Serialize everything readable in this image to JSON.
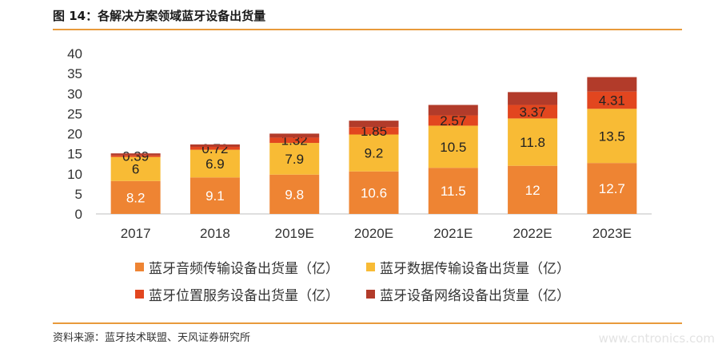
{
  "figure": {
    "title": "图 14：各解决方案领域蓝牙设备出货量",
    "source": "资料来源：蓝牙技术联盟、天风证券研究所",
    "watermark": "www.cntronics.com"
  },
  "chart_data": {
    "type": "bar",
    "stacked": true,
    "categories": [
      "2017",
      "2018",
      "2019E",
      "2020E",
      "2021E",
      "2022E",
      "2023E"
    ],
    "ylim": [
      0,
      40
    ],
    "yticks": [
      0,
      5,
      10,
      15,
      20,
      25,
      30,
      35,
      40
    ],
    "grid": false,
    "legend_position": "bottom",
    "series": [
      {
        "name": "蓝牙音频传输设备出货量（亿）",
        "color": "#ee8433",
        "label_color": "#ffffff",
        "values": [
          8.2,
          9.1,
          9.8,
          10.6,
          11.5,
          12,
          12.7
        ],
        "labels": [
          "8.2",
          "9.1",
          "9.8",
          "10.6",
          "11.5",
          "12",
          "12.7"
        ]
      },
      {
        "name": "蓝牙数据传输设备出货量（亿）",
        "color": "#f8bb35",
        "label_color": "#222222",
        "values": [
          6,
          6.9,
          7.9,
          9.2,
          10.5,
          11.8,
          13.5
        ],
        "labels": [
          "6",
          "6.9",
          "7.9",
          "9.2",
          "10.5",
          "11.8",
          "13.5"
        ]
      },
      {
        "name": "蓝牙位置服务设备出货量（亿）",
        "color": "#e2461f",
        "label_color": "#222222",
        "values": [
          0.39,
          0.72,
          1.32,
          1.85,
          2.57,
          3.37,
          4.31
        ],
        "labels": [
          "0.39",
          "0.72",
          "1.32",
          "1.85",
          "2.57",
          "3.37",
          "4.31"
        ]
      },
      {
        "name": "蓝牙设备网络设备出货量（亿）",
        "color": "#b23b2a",
        "label_color": "#222222",
        "values": [
          0.5,
          0.6,
          1.0,
          1.6,
          2.6,
          3.2,
          3.6
        ],
        "labels": []
      }
    ]
  }
}
